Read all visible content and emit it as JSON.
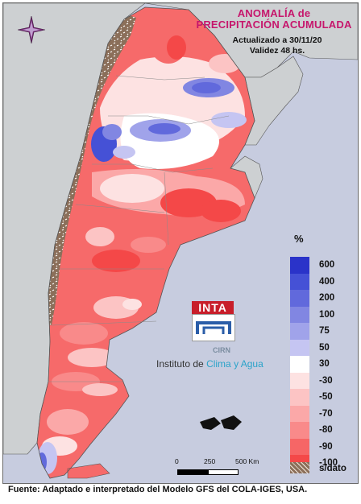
{
  "title": {
    "line1": "ANOMALÍA de",
    "line2": "PRECIPITACIÓN ACUMULADA"
  },
  "subtitle": {
    "updated": "Actualizado a 30/11/20",
    "validity": "Validez 48 hs."
  },
  "legend": {
    "unit": "%",
    "items": [
      {
        "label": "600",
        "color": "#2a33c9"
      },
      {
        "label": "400",
        "color": "#4551d6"
      },
      {
        "label": "200",
        "color": "#6169dc"
      },
      {
        "label": "100",
        "color": "#8186e2"
      },
      {
        "label": "75",
        "color": "#a0a3ea"
      },
      {
        "label": "50",
        "color": "#c5c5f2"
      },
      {
        "label": "30",
        "color": "#ffffff"
      },
      {
        "label": "-30",
        "color": "#fde2e2"
      },
      {
        "label": "-50",
        "color": "#fcc4c4"
      },
      {
        "label": "-70",
        "color": "#fba8a8"
      },
      {
        "label": "-80",
        "color": "#f98a8a"
      },
      {
        "label": "-90",
        "color": "#f66666"
      },
      {
        "label": "-100",
        "color": "#f44848"
      }
    ],
    "nodata_label": "s/dato",
    "nodata_color": "#8b6f5a"
  },
  "scale": {
    "labels": [
      "0",
      "250",
      "500 Km"
    ]
  },
  "logo": {
    "brand": "INTA",
    "cirn": "CIRN",
    "institute": "Instituto de",
    "highlight": "Clima y Agua"
  },
  "footer": "Fuente: Adaptado e interpretado del Modelo GFS del COLA-IGES, USA.",
  "icons": {
    "compass": "compass-rose-icon"
  }
}
